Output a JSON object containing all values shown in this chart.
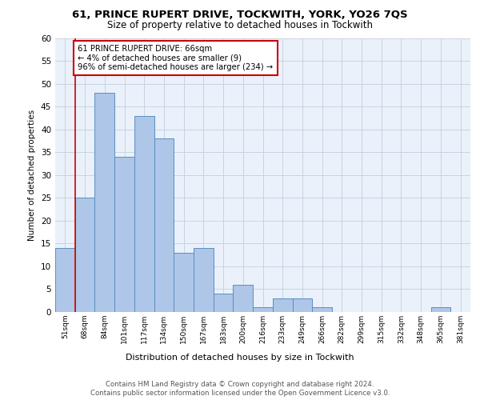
{
  "title1": "61, PRINCE RUPERT DRIVE, TOCKWITH, YORK, YO26 7QS",
  "title2": "Size of property relative to detached houses in Tockwith",
  "xlabel": "Distribution of detached houses by size in Tockwith",
  "ylabel": "Number of detached properties",
  "bin_labels": [
    "51sqm",
    "68sqm",
    "84sqm",
    "101sqm",
    "117sqm",
    "134sqm",
    "150sqm",
    "167sqm",
    "183sqm",
    "200sqm",
    "216sqm",
    "233sqm",
    "249sqm",
    "266sqm",
    "282sqm",
    "299sqm",
    "315sqm",
    "332sqm",
    "348sqm",
    "365sqm",
    "381sqm"
  ],
  "bar_heights": [
    14,
    25,
    48,
    34,
    43,
    38,
    13,
    14,
    4,
    6,
    1,
    3,
    3,
    1,
    0,
    0,
    0,
    0,
    0,
    1,
    0
  ],
  "bar_color": "#aec6e8",
  "bar_edge_color": "#5a8fc0",
  "annotation_text": "61 PRINCE RUPERT DRIVE: 66sqm\n← 4% of detached houses are smaller (9)\n96% of semi-detached houses are larger (234) →",
  "annotation_box_color": "#ffffff",
  "annotation_box_edge": "#cc0000",
  "vline_x_index": 1,
  "vline_color": "#cc0000",
  "ylim": [
    0,
    60
  ],
  "yticks": [
    0,
    5,
    10,
    15,
    20,
    25,
    30,
    35,
    40,
    45,
    50,
    55,
    60
  ],
  "footer1": "Contains HM Land Registry data © Crown copyright and database right 2024.",
  "footer2": "Contains public sector information licensed under the Open Government Licence v3.0.",
  "plot_background": "#eaf1fa"
}
